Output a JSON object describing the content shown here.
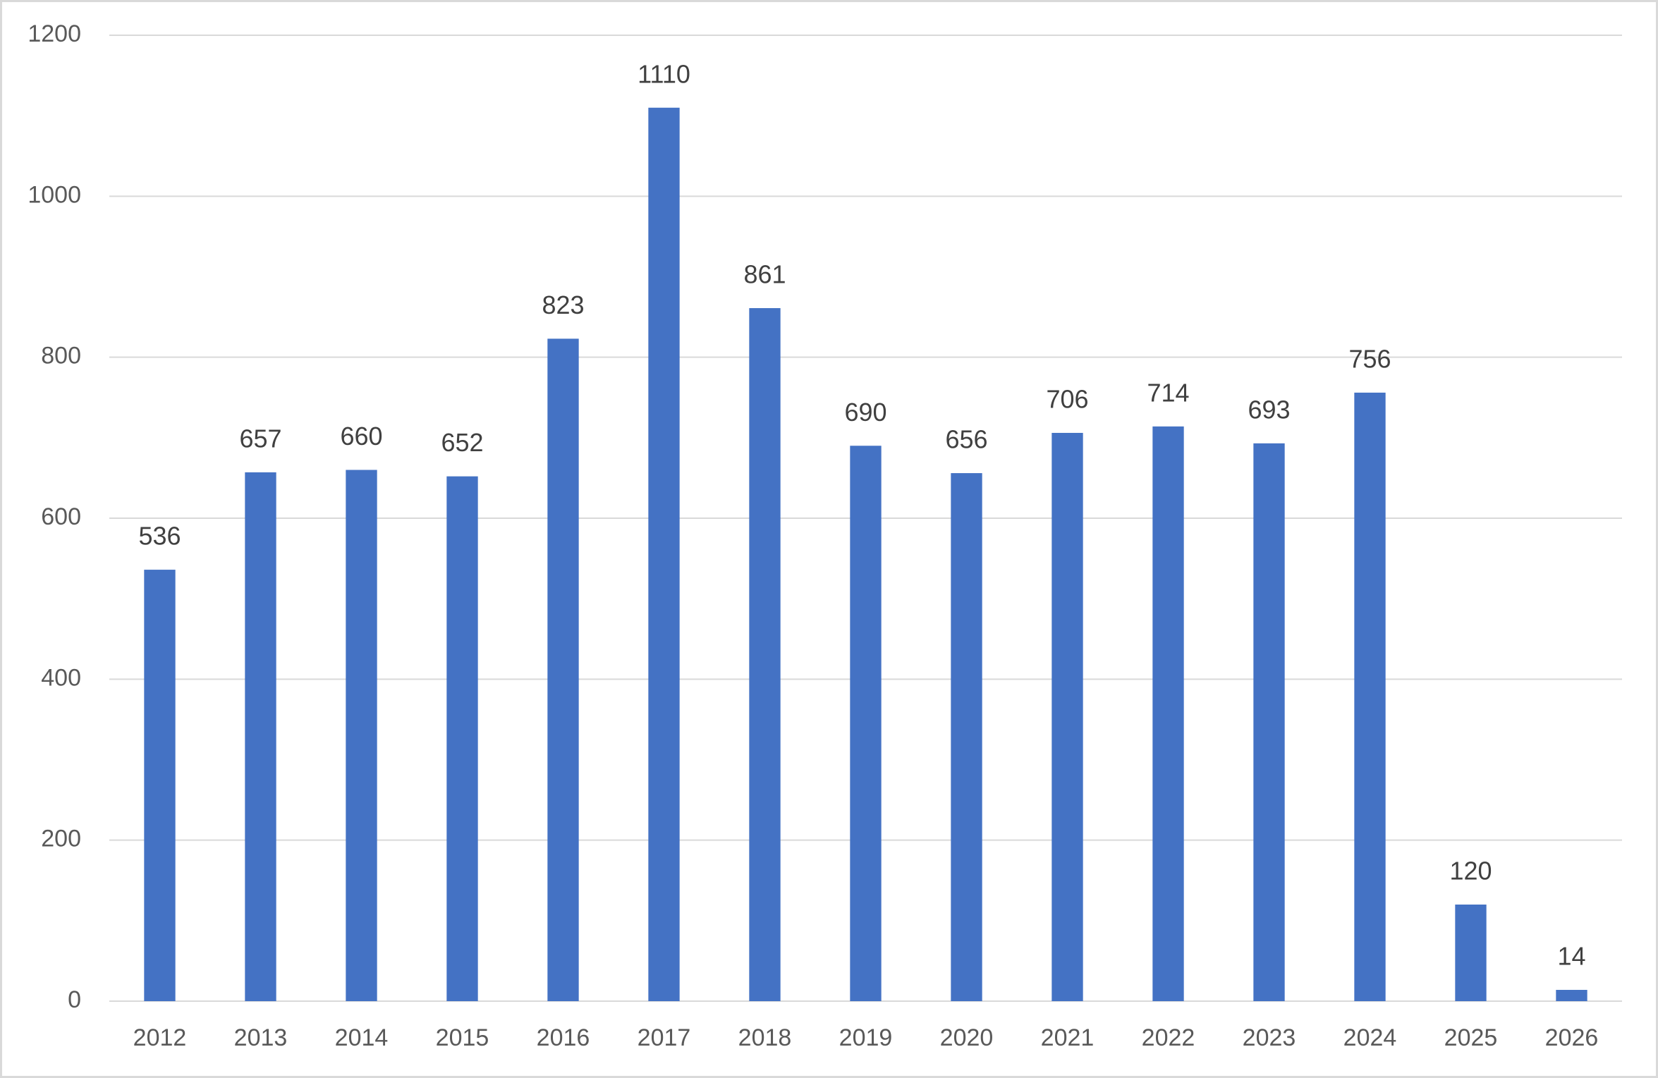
{
  "chart_data": {
    "type": "bar",
    "categories": [
      "2012",
      "2013",
      "2014",
      "2015",
      "2016",
      "2017",
      "2018",
      "2019",
      "2020",
      "2021",
      "2022",
      "2023",
      "2024",
      "2025",
      "2026"
    ],
    "values": [
      536,
      657,
      660,
      652,
      823,
      1110,
      861,
      690,
      656,
      706,
      714,
      693,
      756,
      120,
      14
    ],
    "color": "#4472c4",
    "ylim": [
      0,
      1200
    ],
    "yticks": [
      0,
      200,
      400,
      600,
      800,
      1000,
      1200
    ],
    "grid": true,
    "data_labels": true
  }
}
